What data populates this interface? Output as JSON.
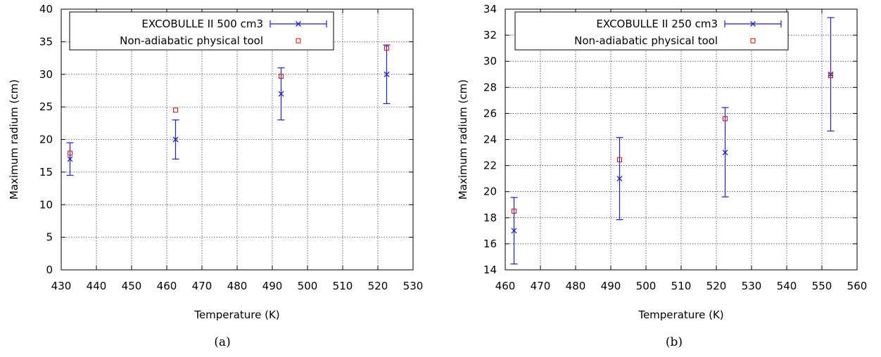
{
  "chart_data": [
    {
      "type": "scatter",
      "panel_label": "(a)",
      "xlabel": "Temperature (K)",
      "ylabel": "Maximum radium (cm)",
      "xlim": [
        430,
        530
      ],
      "ylim": [
        0,
        40
      ],
      "xticks": [
        "430",
        "440",
        "450",
        "460",
        "470",
        "480",
        "490",
        "500",
        "510",
        "520",
        "530"
      ],
      "yticks": [
        "0",
        "5",
        "10",
        "15",
        "20",
        "25",
        "30",
        "35",
        "40"
      ],
      "grid": true,
      "legend_position": "top",
      "series": [
        {
          "name": "EXCOBULLE II 500 cm3",
          "marker": "x",
          "color": "#1e1ed2",
          "x": [
            432.5,
            462.5,
            492.5,
            522.5
          ],
          "y": [
            17,
            20,
            27,
            30
          ],
          "ylow": [
            14.5,
            17,
            23,
            25.5
          ],
          "yhigh": [
            19.5,
            23,
            31,
            34.5
          ]
        },
        {
          "name": "Non-adiabatic physical tool",
          "marker": "square",
          "color": "#e01818",
          "x": [
            432.5,
            462.5,
            492.5,
            522.5
          ],
          "y": [
            17.9,
            24.5,
            29.7,
            34.0
          ]
        }
      ]
    },
    {
      "type": "scatter",
      "panel_label": "(b)",
      "xlabel": "Temperature (K)",
      "ylabel": "Maximum radium (cm)",
      "xlim": [
        460,
        560
      ],
      "ylim": [
        14,
        34
      ],
      "xticks": [
        "460",
        "470",
        "480",
        "490",
        "500",
        "510",
        "520",
        "530",
        "540",
        "550",
        "560"
      ],
      "yticks": [
        "14",
        "16",
        "18",
        "20",
        "22",
        "24",
        "26",
        "28",
        "30",
        "32",
        "34"
      ],
      "grid": true,
      "legend_position": "top",
      "series": [
        {
          "name": "EXCOBULLE II 250 cm3",
          "marker": "x",
          "color": "#1e1ed2",
          "x": [
            462.5,
            492.5,
            522.5,
            552.5
          ],
          "y": [
            17,
            21,
            23,
            29
          ],
          "ylow": [
            14.45,
            17.85,
            19.6,
            24.65
          ],
          "yhigh": [
            19.55,
            24.15,
            26.45,
            33.35
          ]
        },
        {
          "name": "Non-adiabatic physical tool",
          "marker": "square",
          "color": "#e01818",
          "x": [
            462.5,
            492.5,
            522.5,
            552.5
          ],
          "y": [
            18.5,
            22.45,
            25.6,
            28.9
          ]
        }
      ]
    }
  ]
}
